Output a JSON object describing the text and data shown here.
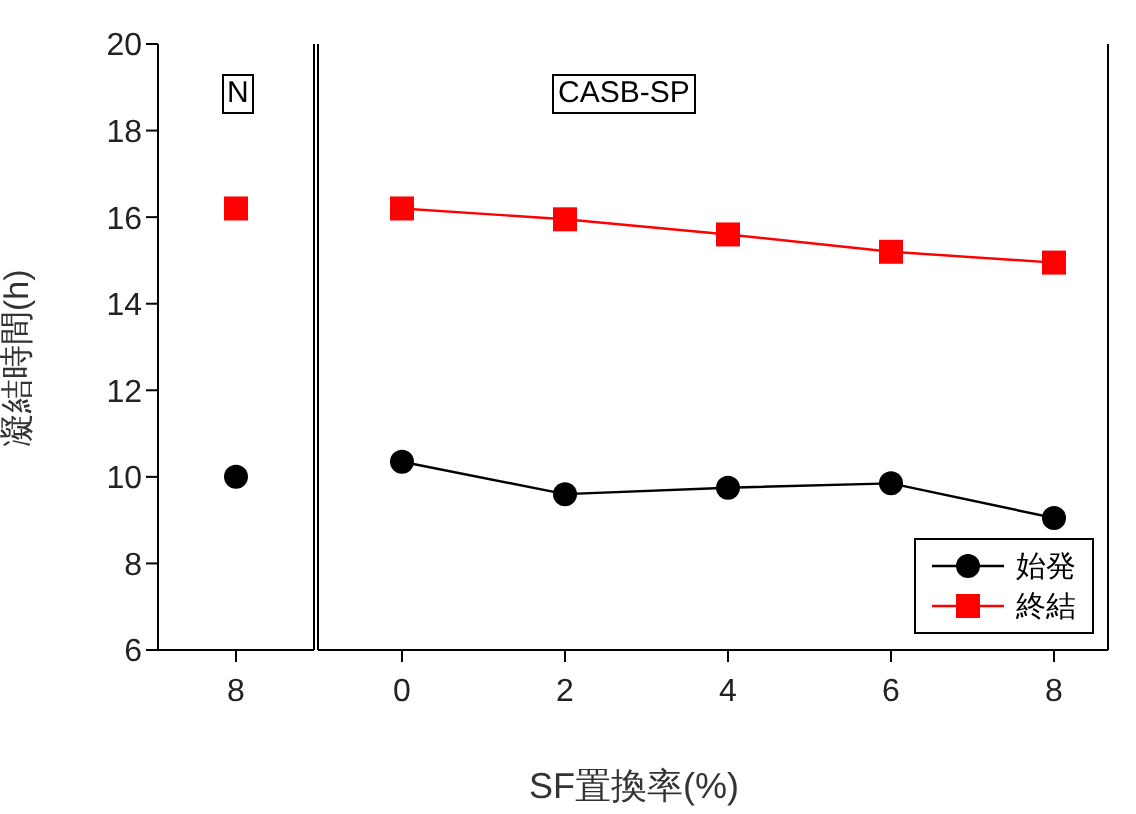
{
  "chart_data": [
    {
      "type": "scatter",
      "categories": [
        "8"
      ],
      "ylim": [
        6,
        20
      ],
      "yticks": [
        6,
        8,
        10,
        12,
        14,
        16,
        18,
        20
      ],
      "ylabel": "凝結時間(h)",
      "annotations": [
        "N"
      ],
      "series": [
        {
          "color": "#000000",
          "values": [
            10.0
          ],
          "marker": "circle"
        },
        {
          "color": "#ff0000",
          "values": [
            16.2
          ],
          "marker": "square"
        }
      ]
    },
    {
      "type": "line",
      "categories": [
        "0",
        "2",
        "4",
        "6",
        "8"
      ],
      "ylim": [
        6,
        20
      ],
      "yticks": [
        6,
        8,
        10,
        12,
        14,
        16,
        18,
        20
      ],
      "tick_labels": "x",
      "xlabel": "SF置換率(%)",
      "annotations": [
        "CASB-SP"
      ],
      "legend": "bottom right",
      "series": [
        {
          "name": "始発",
          "color": "#000000",
          "values": [
            10.35,
            9.6,
            9.75,
            9.85,
            9.05
          ],
          "marker": "circle"
        },
        {
          "name": "終結",
          "color": "#ff0000",
          "values": [
            16.2,
            15.95,
            15.6,
            15.2,
            14.95
          ],
          "marker": "square"
        }
      ]
    }
  ]
}
